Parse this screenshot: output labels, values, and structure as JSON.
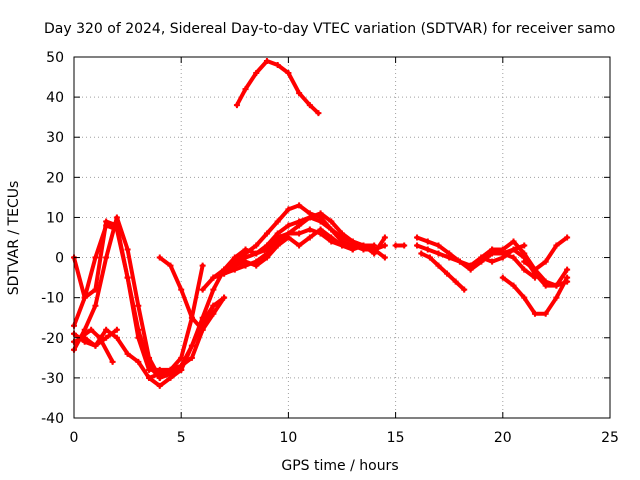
{
  "chart_data": {
    "type": "scatter",
    "title": "Day 320 of 2024, Sidereal Day-to-day VTEC variation (SDTVAR) for receiver samo",
    "xlabel": "GPS time / hours",
    "ylabel": "SDTVAR / TECUs",
    "xlim": [
      0,
      25
    ],
    "ylim": [
      -40,
      50
    ],
    "xticks": [
      0,
      5,
      10,
      15,
      20,
      25
    ],
    "yticks": [
      -40,
      -30,
      -20,
      -10,
      0,
      10,
      20,
      30,
      40,
      50
    ],
    "grid": true,
    "color": "#ff0000",
    "series": [
      {
        "name": "arc-01",
        "x": [
          0.0,
          0.5,
          1.0,
          1.5,
          2.0,
          2.5,
          3.0,
          3.5,
          4.0,
          4.5,
          5.0,
          5.5,
          6.0
        ],
        "y": [
          0,
          -10,
          -8,
          9,
          8,
          -5,
          -20,
          -28,
          -28,
          -28,
          -25,
          -15,
          -2
        ]
      },
      {
        "name": "arc-02",
        "x": [
          0.0,
          0.5,
          1.0,
          1.5,
          2.0,
          2.5,
          3.0,
          3.5,
          4.0,
          4.5,
          5.0,
          5.5,
          6.0,
          6.5
        ],
        "y": [
          -17,
          -10,
          0,
          8,
          7,
          -5,
          -18,
          -27,
          -30,
          -29,
          -28,
          -22,
          -16,
          -12
        ]
      },
      {
        "name": "arc-03",
        "x": [
          0.0,
          0.5,
          1.0,
          1.5,
          2.0,
          2.5,
          3.0,
          3.5,
          4.0,
          4.5,
          5.0,
          5.5,
          6.0,
          6.5,
          7.0
        ],
        "y": [
          -23,
          -18,
          -12,
          0,
          10,
          2,
          -12,
          -25,
          -30,
          -28,
          -27,
          -25,
          -18,
          -12,
          -10
        ]
      },
      {
        "name": "arc-04",
        "x": [
          0.0,
          0.5,
          1.0,
          1.5,
          2.0,
          2.5,
          3.0,
          3.5,
          4.0,
          4.5,
          5.0
        ],
        "y": [
          -21,
          -20,
          -22,
          -18,
          -20,
          -24,
          -26,
          -30,
          -32,
          -30,
          -28
        ]
      },
      {
        "name": "arc-05",
        "x": [
          0.0,
          0.5,
          1.0,
          1.5,
          2.0
        ],
        "y": [
          -19,
          -21,
          -22,
          -20,
          -18
        ]
      },
      {
        "name": "arc-06",
        "x": [
          0.3,
          0.8,
          1.2,
          1.8
        ],
        "y": [
          -20,
          -18,
          -20,
          -26
        ]
      },
      {
        "name": "arc-07",
        "x": [
          4.0,
          4.5,
          5.0,
          5.5,
          6.0,
          6.5,
          7.0
        ],
        "y": [
          0,
          -2,
          -8,
          -15,
          -18,
          -14,
          -10
        ]
      },
      {
        "name": "arc-08",
        "x": [
          3.5,
          4.0,
          4.5,
          5.0,
          5.5,
          6.0,
          6.5,
          7.0,
          7.5,
          8.0,
          8.5,
          9.0,
          9.5,
          10.0,
          10.5,
          11.0,
          11.5,
          12.0,
          12.5,
          13.0,
          13.5,
          14.0,
          14.5
        ],
        "y": [
          -30,
          -29,
          -28,
          -27,
          -22,
          -15,
          -8,
          -3,
          0,
          2,
          1,
          3,
          6,
          8,
          9,
          10,
          9,
          7,
          5,
          4,
          3,
          2,
          0
        ]
      },
      {
        "name": "arc-09",
        "x": [
          6.0,
          6.5,
          7.0,
          7.5,
          8.0,
          8.5,
          9.0,
          9.5,
          10.0,
          10.5,
          11.0,
          11.5,
          12.0,
          12.5,
          13.0,
          13.5,
          14.0,
          14.5
        ],
        "y": [
          -8,
          -5,
          -3,
          -1,
          1,
          3,
          6,
          9,
          12,
          13,
          11,
          10,
          7,
          4,
          3,
          2,
          2,
          3
        ]
      },
      {
        "name": "arc-10",
        "x": [
          6.5,
          7.0,
          7.5,
          8.0,
          8.5,
          9.0,
          9.5,
          10.0,
          10.5,
          11.0,
          11.5,
          12.0,
          12.5,
          13.0,
          13.5,
          14.0
        ],
        "y": [
          -5,
          -4,
          -3,
          -2,
          -1,
          1,
          4,
          6,
          8,
          10,
          11,
          9,
          6,
          4,
          3,
          3
        ]
      },
      {
        "name": "arc-11",
        "x": [
          7.0,
          7.5,
          8.0,
          8.5,
          9.0,
          9.5,
          10.0,
          10.5,
          11.0,
          11.5,
          12.0,
          12.5,
          13.0
        ],
        "y": [
          -4,
          -2,
          0,
          1,
          2,
          5,
          6,
          6,
          7,
          6,
          4,
          3,
          2
        ]
      },
      {
        "name": "arc-12",
        "x": [
          7.5,
          8.0,
          8.5,
          9.0,
          9.5,
          10.0,
          10.5,
          11.0,
          11.5,
          12.0,
          12.5,
          13.0,
          13.5,
          14.0,
          14.5
        ],
        "y": [
          -2,
          -1,
          -2,
          0,
          3,
          5,
          3,
          5,
          7,
          5,
          3,
          2,
          3,
          1,
          5
        ]
      },
      {
        "name": "arc-13",
        "x": [
          7.6,
          8.0,
          8.5,
          9.0,
          9.5,
          10.0,
          10.5,
          11.0,
          11.4
        ],
        "y": [
          38,
          42,
          46,
          49,
          48,
          46,
          41,
          38,
          36
        ]
      },
      {
        "name": "arc-14",
        "x": [
          15.0,
          15.4
        ],
        "y": [
          3,
          3
        ]
      },
      {
        "name": "arc-15",
        "x": [
          16.0,
          16.5,
          17.0,
          17.5,
          18.0,
          18.5,
          19.0,
          19.5,
          20.0,
          20.5,
          21.0
        ],
        "y": [
          5,
          4,
          3,
          1,
          -1,
          -3,
          -1,
          1,
          1,
          2,
          3
        ]
      },
      {
        "name": "arc-16",
        "x": [
          16.0,
          16.5,
          17.0,
          17.5,
          18.0,
          18.5,
          19.0,
          19.5,
          20.0,
          20.5,
          21.0,
          21.5
        ],
        "y": [
          3,
          2,
          1,
          0,
          -1,
          -2,
          0,
          2,
          1,
          0,
          -3,
          -5
        ]
      },
      {
        "name": "arc-17",
        "x": [
          16.2,
          16.6,
          17.0,
          17.4,
          17.8,
          18.2
        ],
        "y": [
          1,
          0,
          -2,
          -4,
          -6,
          -8
        ]
      },
      {
        "name": "arc-18",
        "x": [
          18.5,
          19.0,
          19.5,
          20.0,
          20.5,
          21.0,
          21.5,
          22.0,
          22.5,
          23.0
        ],
        "y": [
          -2,
          0,
          2,
          2,
          4,
          1,
          -3,
          -6,
          -7,
          -6
        ]
      },
      {
        "name": "arc-19",
        "x": [
          19.0,
          19.5,
          20.0,
          20.5,
          21.0,
          21.5,
          22.0,
          22.5,
          23.0
        ],
        "y": [
          0,
          -1,
          0,
          2,
          0,
          -4,
          -7,
          -7,
          -3
        ]
      },
      {
        "name": "arc-20",
        "x": [
          20.0,
          20.5,
          21.0,
          21.5,
          22.0,
          22.5,
          23.0
        ],
        "y": [
          -5,
          -7,
          -10,
          -14,
          -14,
          -10,
          -5
        ]
      },
      {
        "name": "arc-21",
        "x": [
          21.0,
          21.5,
          22.0,
          22.5,
          23.0
        ],
        "y": [
          -1,
          -3,
          -1,
          3,
          5
        ]
      }
    ]
  }
}
